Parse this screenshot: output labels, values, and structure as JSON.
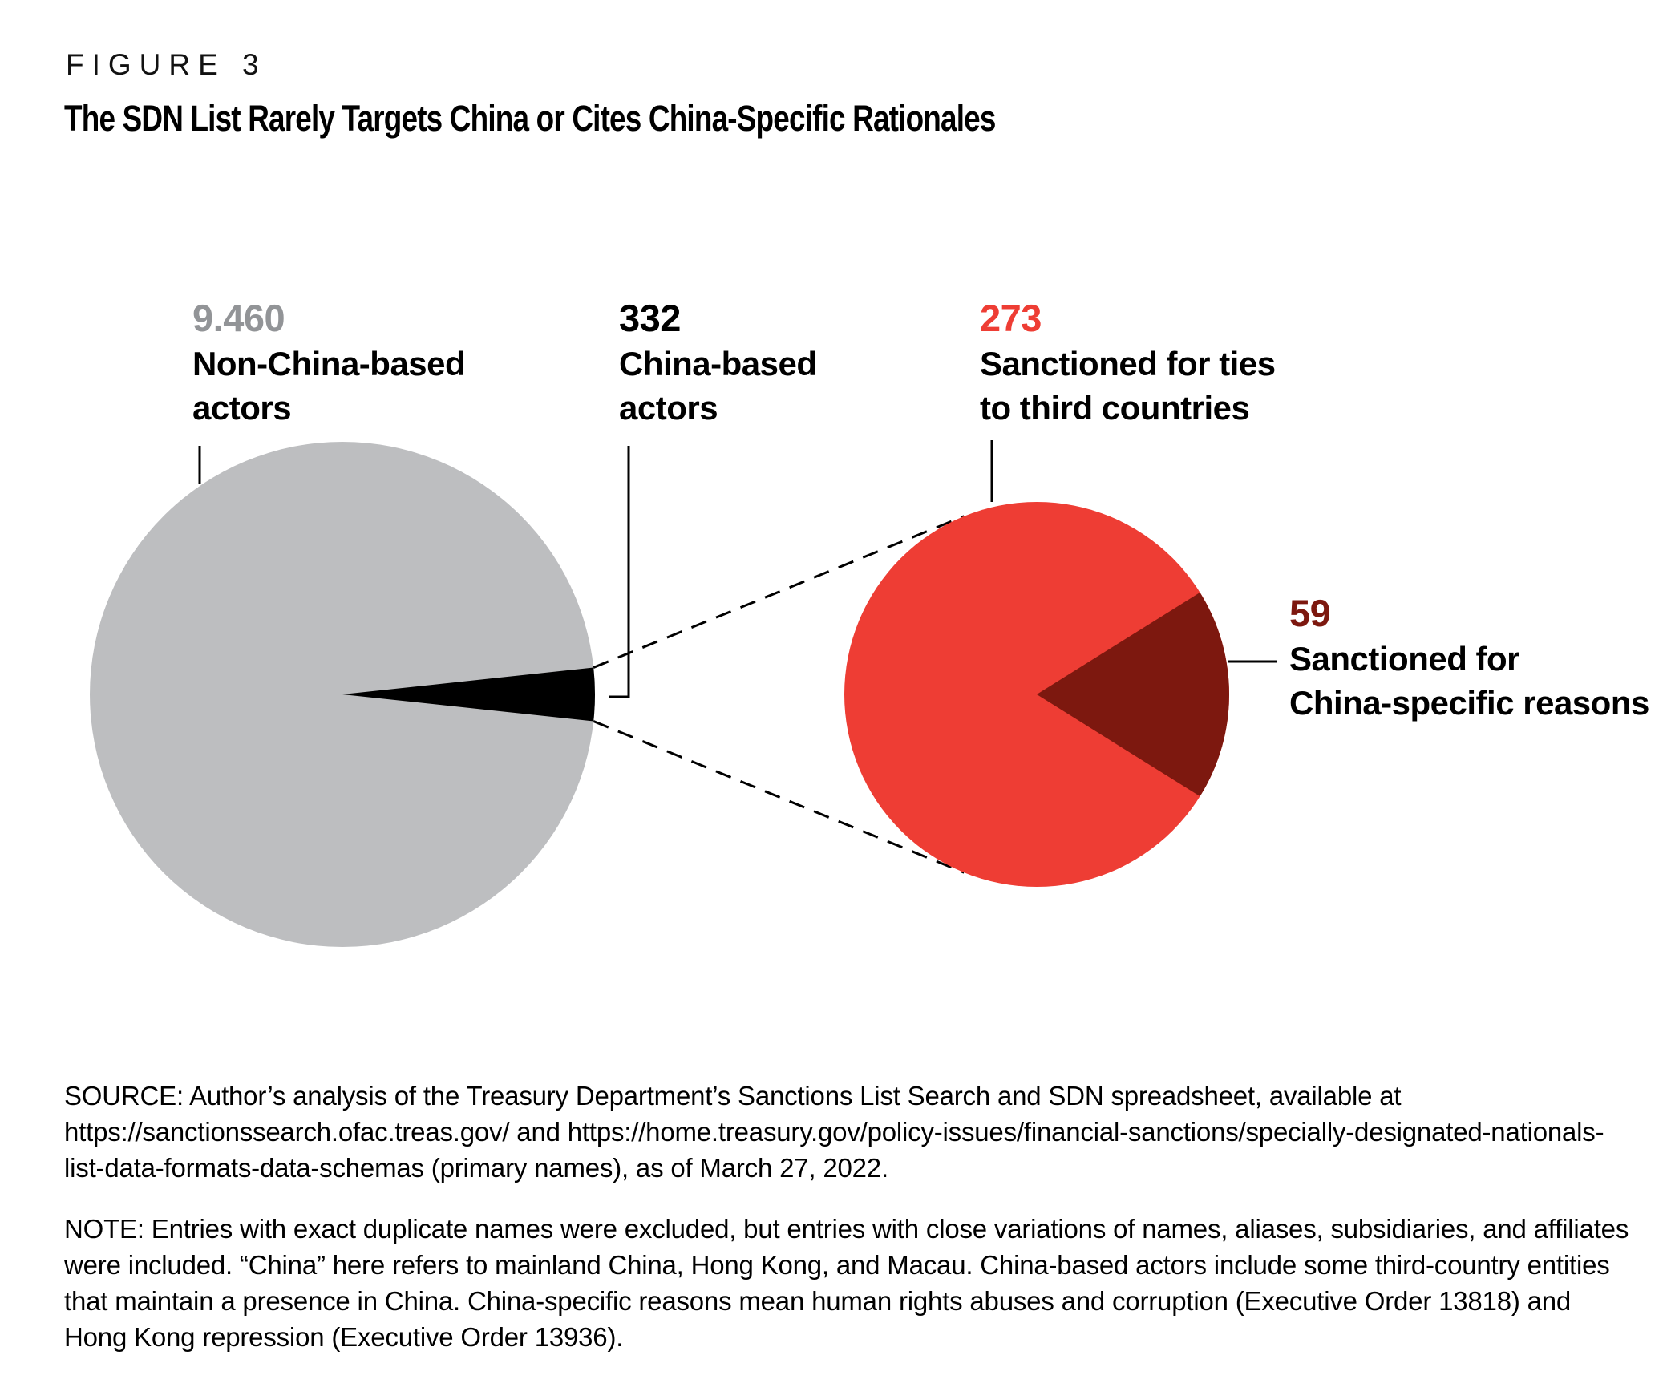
{
  "figure": {
    "label": "FIGURE 3",
    "title": "The SDN List Rarely Targets China or Cites China-Specific Rationales"
  },
  "colors": {
    "gray": "#bdbec0",
    "gray_number": "#929497",
    "black": "#000000",
    "red": "#ee3d34",
    "dark_red": "#7d180f"
  },
  "chart_data": {
    "type": "pie",
    "title": "The SDN List Rarely Targets China or Cites China-Specific Rationales",
    "legend_position": "callouts",
    "pies": [
      {
        "name": "sdn-list-total",
        "total": 9792,
        "slices": [
          {
            "label": "Non-China-based actors",
            "value": 9460,
            "display_value": "9.460",
            "color_key": "gray"
          },
          {
            "label": "China-based actors",
            "value": 332,
            "display_value": "332",
            "color_key": "black"
          }
        ]
      },
      {
        "name": "china-based-breakdown",
        "total": 332,
        "slices": [
          {
            "label": "Sanctioned for ties to third countries",
            "value": 273,
            "display_value": "273",
            "color_key": "red"
          },
          {
            "label": "Sanctioned for China-specific reasons",
            "value": 59,
            "display_value": "59",
            "color_key": "dark_red"
          }
        ]
      }
    ]
  },
  "callouts": [
    {
      "number": "9.460",
      "line1": "Non-China-based",
      "line2": "actors"
    },
    {
      "number": "332",
      "line1": "China-based",
      "line2": "actors"
    },
    {
      "number": "273",
      "line1": "Sanctioned for ties",
      "line2": "to third countries"
    },
    {
      "number": "59",
      "line1": "Sanctioned for",
      "line2": "China-specific reasons"
    }
  ],
  "source": "SOURCE: Author’s analysis of the Treasury Department’s Sanctions List Search and SDN spreadsheet, available at https://sanctionssearch.ofac.treas.gov/ and https://home.treasury.gov/policy-issues/financial-sanctions/specially-designated-nationals-list-data-formats-data-schemas (primary names), as of March 27, 2022.",
  "note": "NOTE: Entries with exact duplicate names were excluded, but entries with close variations of names, aliases, subsidiaries, and affiliates were included. “China” here refers to mainland China, Hong Kong, and Macau. China-based actors include some third-country entities that maintain a presence in China. China-specific reasons mean human rights abuses and corruption (Executive Order 13818) and Hong Kong repression (Executive Order 13936)."
}
